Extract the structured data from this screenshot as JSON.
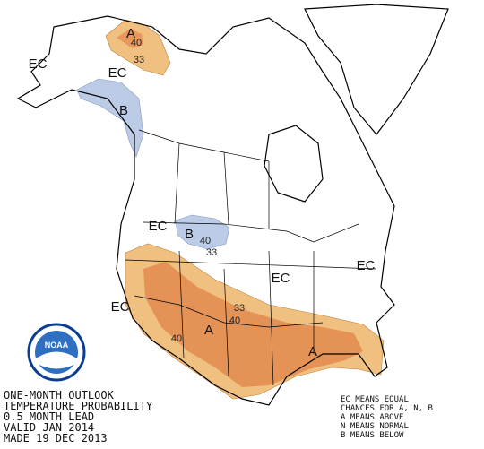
{
  "map": {
    "labels": [
      "EC",
      "EC",
      "A",
      "40",
      "33",
      "B",
      "EC",
      "B",
      "40",
      "33",
      "EC",
      "EC",
      "EC",
      "33",
      "40",
      "A",
      "40",
      "A"
    ],
    "logo": "NOAA",
    "title_lines": [
      "ONE-MONTH OUTLOOK",
      "TEMPERATURE PROBABILITY",
      "0.5 MONTH LEAD",
      "VALID JAN 2014",
      "MADE 19 DEC 2013"
    ],
    "legend_lines": [
      "EC MEANS EQUAL",
      "CHANCES FOR A, N, B",
      "A MEANS ABOVE",
      "N MEANS NORMAL",
      "B MEANS BELOW"
    ]
  }
}
